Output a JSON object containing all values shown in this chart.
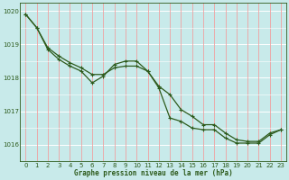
{
  "title": "Graphe pression niveau de la mer (hPa)",
  "bg_color": "#c8eaea",
  "line_color": "#2d5a1b",
  "grid_white_color": "#ffffff",
  "grid_pink_color": "#f0a0a0",
  "xlim": [
    -0.5,
    23.5
  ],
  "ylim": [
    1015.5,
    1020.25
  ],
  "yticks": [
    1016,
    1017,
    1018,
    1019,
    1020
  ],
  "xticks": [
    0,
    1,
    2,
    3,
    4,
    5,
    6,
    7,
    8,
    9,
    10,
    11,
    12,
    13,
    14,
    15,
    16,
    17,
    18,
    19,
    20,
    21,
    22,
    23
  ],
  "line1_x": [
    0,
    1,
    2,
    3,
    4,
    5,
    6,
    7,
    8,
    9,
    10,
    11,
    12,
    13,
    14,
    15,
    16,
    17,
    18,
    19,
    20,
    21,
    22,
    23
  ],
  "line1_y": [
    1019.9,
    1019.5,
    1018.9,
    1018.65,
    1018.45,
    1018.3,
    1018.1,
    1018.1,
    1018.3,
    1018.35,
    1018.35,
    1018.2,
    1017.75,
    1017.5,
    1017.05,
    1016.85,
    1016.6,
    1016.6,
    1016.35,
    1016.15,
    1016.1,
    1016.1,
    1016.35,
    1016.45
  ],
  "line2_x": [
    0,
    1,
    2,
    3,
    4,
    5,
    6,
    7,
    8,
    9,
    10,
    11,
    12,
    13,
    14,
    15,
    16,
    17,
    18,
    19,
    20,
    21,
    22,
    23
  ],
  "line2_y": [
    1019.9,
    1019.5,
    1018.85,
    1018.55,
    1018.35,
    1018.2,
    1017.85,
    1018.05,
    1018.4,
    1018.5,
    1018.5,
    1018.2,
    1017.7,
    1016.8,
    1016.7,
    1016.5,
    1016.45,
    1016.45,
    1016.2,
    1016.05,
    1016.05,
    1016.05,
    1016.3,
    1016.45
  ]
}
